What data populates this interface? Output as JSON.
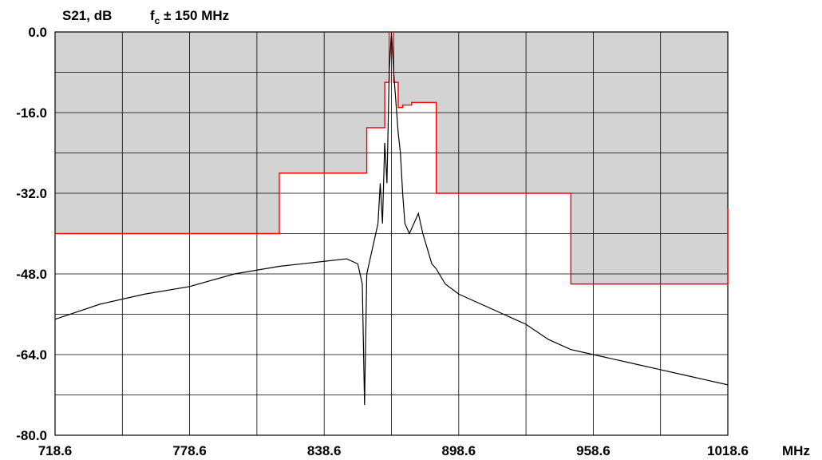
{
  "chart_data": {
    "type": "line",
    "ylabel": "S21, dB",
    "subtitle_main": "f",
    "subtitle_sub": "c",
    "subtitle_rest": " ± 150 MHz",
    "xunit": "MHz",
    "xlim": [
      718.6,
      1018.6
    ],
    "ylim": [
      -80,
      0
    ],
    "xticks": [
      718.6,
      748.6,
      778.6,
      808.6,
      838.6,
      868.6,
      898.6,
      928.6,
      958.6,
      988.6,
      1018.6
    ],
    "xtick_labels": [
      "718.6",
      "778.6",
      "838.6",
      "898.6",
      "958.6",
      "1018.6"
    ],
    "xtick_label_values": [
      718.6,
      778.6,
      838.6,
      898.6,
      958.6,
      1018.6
    ],
    "yticks": [
      0,
      -8,
      -16,
      -24,
      -32,
      -40,
      -48,
      -56,
      -64,
      -72,
      -80
    ],
    "ytick_labels": [
      "0.0",
      "-16.0",
      "-32.0",
      "-48.0",
      "-64.0",
      "-80.0"
    ],
    "ytick_label_values": [
      0,
      -16,
      -32,
      -48,
      -64,
      -80
    ],
    "grid": true,
    "colors": {
      "mask_fill": "#d3d3d3",
      "mask_line": "#ff0000",
      "trace": "#000000",
      "grid": "#000000"
    },
    "series": [
      {
        "role": "mask",
        "x": [
          718.6,
          818.6,
          818.6,
          857.6,
          857.6,
          865.6,
          865.6,
          867.6,
          867.6,
          869.6,
          869.6,
          871.6,
          871.6,
          873.6,
          873.6,
          877.6,
          877.6,
          881.6,
          881.6,
          888.6,
          888.6,
          948.6,
          948.6,
          1018.6,
          1018.6
        ],
        "y": [
          -40,
          -40,
          -28,
          -28,
          -19,
          -19,
          -10,
          -10,
          0,
          0,
          -10,
          -10,
          -15,
          -15,
          -14.5,
          -14.5,
          -14,
          -14,
          -14,
          -14,
          -32,
          -32,
          -50,
          -50,
          -35
        ]
      },
      {
        "role": "measured",
        "x": [
          718.6,
          738.6,
          758.6,
          778.6,
          798.6,
          818.6,
          838.6,
          848.6,
          853.6,
          855.6,
          856.6,
          857.6,
          859.6,
          861.6,
          862.6,
          863.6,
          864.6,
          865.6,
          866.6,
          867.6,
          868.6,
          869.6,
          870.6,
          871.6,
          872.6,
          873.6,
          874.6,
          876.6,
          878.6,
          880.6,
          882.6,
          884.6,
          886.6,
          888.6,
          892.6,
          898.6,
          908.6,
          918.6,
          928.6,
          938.6,
          948.6,
          958.6,
          968.6,
          978.6,
          988.6,
          998.6,
          1008.6,
          1018.6
        ],
        "y": [
          -57,
          -54,
          -52,
          -50.5,
          -48,
          -46.5,
          -45.5,
          -45,
          -46,
          -50,
          -74,
          -48,
          -44,
          -40,
          -38,
          -30,
          -38,
          -22,
          -30,
          -8,
          0,
          -8,
          -14,
          -20,
          -24,
          -32,
          -38,
          -40,
          -38,
          -36,
          -40,
          -43,
          -46,
          -47,
          -50,
          -52,
          -54,
          -56,
          -58,
          -61,
          -63,
          -64,
          -65,
          -66,
          -67,
          -68,
          -69,
          -70
        ]
      }
    ]
  }
}
